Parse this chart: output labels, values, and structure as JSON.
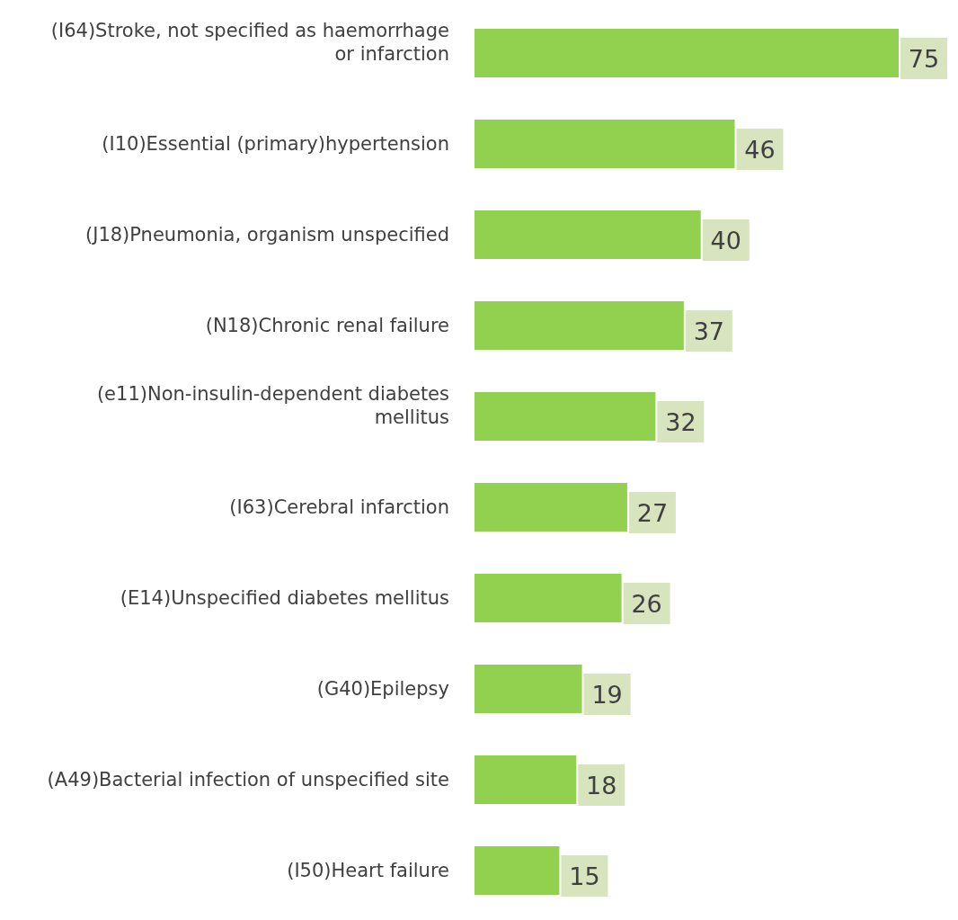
{
  "chart_data": {
    "type": "bar",
    "orientation": "horizontal",
    "data_labels": true,
    "color": "#92d050",
    "categories": [
      "(I64)Stroke, not specified as haemorrhage or infarction",
      "(I10)Essential (primary)hypertension",
      "(J18)Pneumonia, organism unspecified",
      "(N18)Chronic renal failure",
      "(e11)Non-insulin-dependent diabetes mellitus",
      "(I63)Cerebral infarction",
      "(E14)Unspecified diabetes mellitus",
      "(G40)Epilepsy",
      "(A49)Bacterial infection of unspecified site",
      "(I50)Heart failure"
    ],
    "values": [
      75,
      46,
      40,
      37,
      32,
      27,
      26,
      19,
      18,
      15
    ]
  }
}
